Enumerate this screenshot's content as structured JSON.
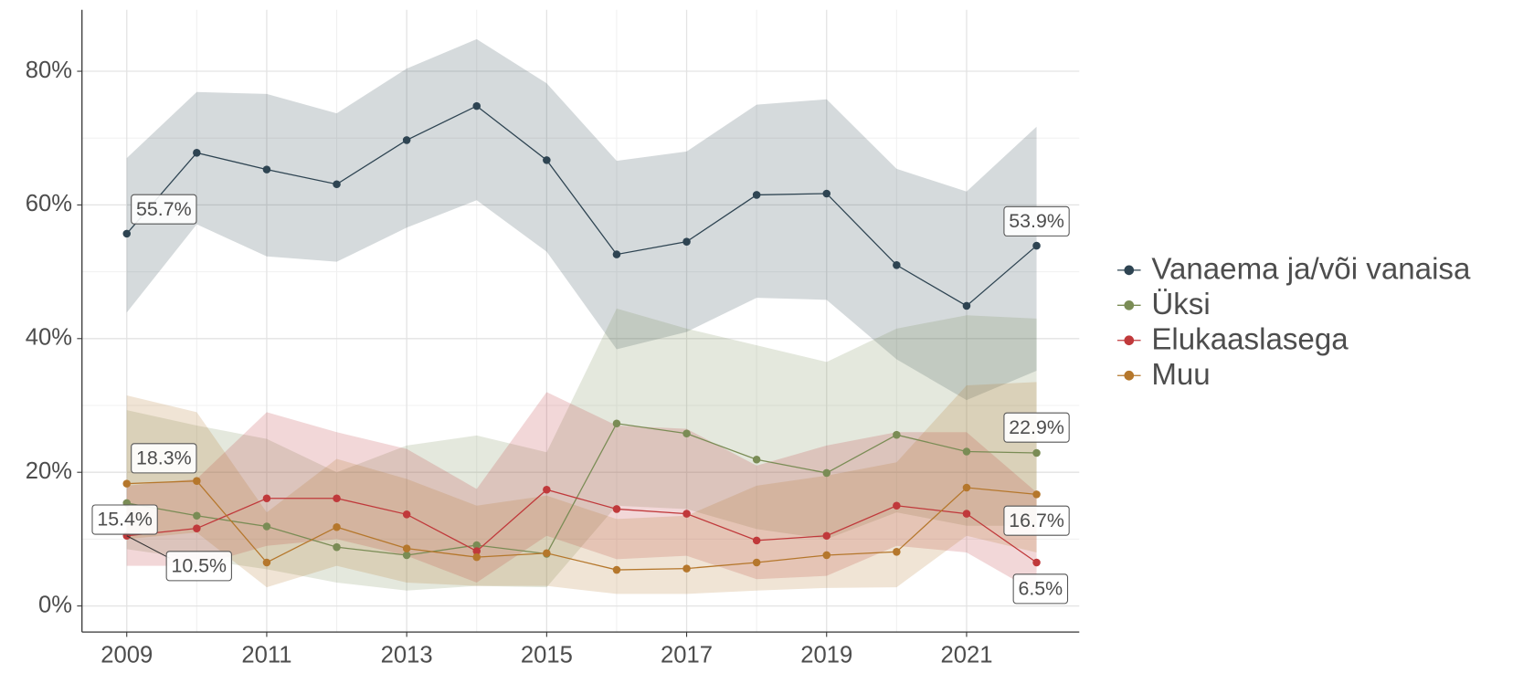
{
  "chart_data": {
    "type": "line",
    "x": [
      2009,
      2010,
      2011,
      2012,
      2013,
      2014,
      2015,
      2016,
      2017,
      2018,
      2019,
      2020,
      2021,
      2022
    ],
    "xlim": [
      2008.36,
      2022.61
    ],
    "xticks": [
      2009,
      2011,
      2013,
      2015,
      2017,
      2019,
      2021
    ],
    "ylim": [
      -3.9,
      89.2
    ],
    "yticks": [
      {
        "value": 0,
        "label": "0%"
      },
      {
        "value": 20,
        "label": "20%"
      },
      {
        "value": 40,
        "label": "40%"
      },
      {
        "value": 60,
        "label": "60%"
      },
      {
        "value": 80,
        "label": "80%"
      }
    ],
    "grid": true,
    "legend": "right",
    "series": [
      {
        "name": "Vanaema ja/või vanaisa",
        "color": "#2e4452",
        "values": [
          55.7,
          67.8,
          65.3,
          63.1,
          69.7,
          74.8,
          66.7,
          52.6,
          54.5,
          61.5,
          61.7,
          51.0,
          44.9,
          53.9
        ],
        "upper": [
          67.0,
          76.9,
          76.6,
          73.7,
          80.4,
          84.8,
          78.2,
          66.6,
          68.0,
          75.0,
          75.8,
          65.4,
          62.0,
          71.7
        ],
        "lower": [
          43.9,
          57.1,
          52.3,
          51.5,
          56.6,
          60.7,
          53.0,
          38.4,
          41.0,
          46.1,
          45.8,
          36.9,
          30.8,
          35.2
        ],
        "value_labels": [
          "55.7%",
          null,
          null,
          null,
          null,
          null,
          null,
          null,
          null,
          null,
          null,
          null,
          null,
          "53.9%"
        ]
      },
      {
        "name": "Üksi",
        "color": "#7a8c55",
        "values": [
          15.4,
          13.5,
          11.9,
          8.8,
          7.6,
          9.1,
          7.8,
          27.3,
          25.8,
          21.9,
          19.9,
          25.6,
          23.1,
          22.9
        ],
        "upper": [
          29.3,
          27,
          25,
          20,
          24,
          25.5,
          23,
          44.5,
          41.5,
          39,
          36.5,
          41.5,
          43.5,
          43
        ],
        "lower": [
          8.5,
          7,
          5.5,
          3.5,
          2.3,
          3,
          2.8,
          15,
          14.5,
          11.5,
          10,
          14,
          12,
          12
        ],
        "value_labels": [
          "15.4%",
          null,
          null,
          null,
          null,
          null,
          null,
          null,
          null,
          null,
          null,
          null,
          null,
          "22.9%"
        ]
      },
      {
        "name": "Elukaaslasega",
        "color": "#c0393b",
        "values": [
          10.5,
          11.6,
          16.1,
          16.1,
          13.7,
          8.2,
          17.4,
          14.5,
          13.8,
          9.8,
          10.5,
          15.0,
          13.8,
          6.5
        ],
        "upper": [
          18,
          19,
          29,
          26,
          23.5,
          17.5,
          32,
          27,
          26.5,
          21,
          24,
          26,
          26,
          17
        ],
        "lower": [
          6,
          6,
          9,
          10,
          7.5,
          3.5,
          10.5,
          7,
          7.5,
          4,
          4.5,
          9,
          8,
          2
        ],
        "value_labels": [
          "10.5%",
          null,
          null,
          null,
          null,
          null,
          null,
          null,
          null,
          null,
          null,
          null,
          null,
          "6.5%"
        ]
      },
      {
        "name": "Muu",
        "color": "#b5772c",
        "values": [
          18.3,
          18.7,
          6.5,
          11.8,
          8.6,
          7.3,
          7.9,
          5.4,
          5.6,
          6.5,
          7.6,
          8.1,
          17.7,
          16.7
        ],
        "upper": [
          31.5,
          29,
          14,
          22,
          19,
          15,
          16.5,
          13,
          13.5,
          18,
          19.5,
          21.5,
          33,
          33.5
        ],
        "lower": [
          10,
          11,
          2.8,
          6,
          3.5,
          3,
          3,
          1.8,
          1.8,
          2.3,
          2.7,
          2.8,
          10.5,
          8
        ],
        "value_labels": [
          "18.3%",
          null,
          null,
          null,
          null,
          null,
          null,
          null,
          null,
          null,
          null,
          null,
          null,
          "16.7%"
        ]
      }
    ]
  }
}
